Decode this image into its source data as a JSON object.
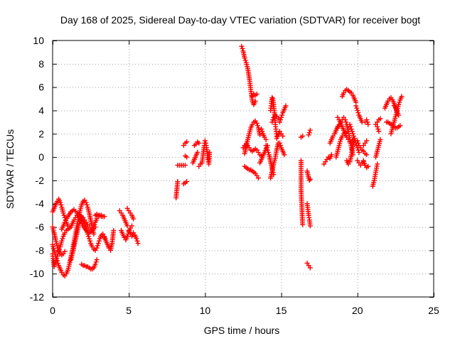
{
  "chart_data": {
    "type": "scatter",
    "title": "Day 168 of 2025, Sidereal Day-to-day VTEC variation (SDTVAR) for receiver bogt",
    "xlabel": "GPS time / hours",
    "ylabel": "SDTVAR / TECUs",
    "xlim": [
      0,
      25
    ],
    "ylim": [
      -12,
      10
    ],
    "xticks": [
      0,
      5,
      10,
      15,
      20,
      25
    ],
    "yticks": [
      -12,
      -10,
      -8,
      -6,
      -4,
      -2,
      0,
      2,
      4,
      6,
      8,
      10
    ],
    "grid": true,
    "marker": "plus",
    "color": "#ff0000",
    "segments": [
      {
        "x": [
          0.0,
          0.1,
          0.2,
          0.3,
          0.4,
          0.5,
          0.6,
          0.7,
          0.8,
          0.9,
          1.0,
          1.1,
          1.2,
          1.3,
          1.4,
          1.5,
          1.6,
          1.7,
          1.8,
          1.9,
          2.0,
          2.1,
          2.2,
          2.3,
          2.4,
          2.5,
          2.6,
          2.7,
          2.8,
          2.9,
          3.0,
          3.1,
          3.2
        ],
        "y": [
          -4.7,
          -4.4,
          -4.1,
          -3.8,
          -3.6,
          -3.9,
          -4.3,
          -4.8,
          -5.2,
          -5.6,
          -5.9,
          -6.1,
          -6.0,
          -5.7,
          -5.4,
          -5.2,
          -5.0,
          -4.9,
          -5.0,
          -5.1,
          -5.2,
          -5.4,
          -5.6,
          -5.8,
          -6.0,
          -6.2,
          -6.3,
          -6.0,
          -5.6,
          -5.3,
          -5.1,
          -5.0,
          -5.1
        ]
      },
      {
        "x": [
          0.0,
          0.1,
          0.2,
          0.3,
          0.4,
          0.5,
          0.6,
          0.7,
          0.8,
          0.9,
          1.0,
          1.1,
          1.2,
          1.3,
          1.4,
          1.5,
          1.6,
          1.7,
          1.8,
          1.9,
          2.0,
          2.1,
          2.2,
          2.3,
          2.4,
          2.5,
          2.6,
          2.7
        ],
        "y": [
          -7.5,
          -8.0,
          -8.5,
          -8.9,
          -9.3,
          -9.6,
          -9.9,
          -10.1,
          -10.2,
          -10.0,
          -9.7,
          -9.2,
          -8.6,
          -8.0,
          -7.3,
          -6.6,
          -5.9,
          -5.2,
          -4.6,
          -4.1,
          -3.8,
          -3.7,
          -3.9,
          -4.3,
          -4.8,
          -5.4,
          -6.0,
          -6.6
        ]
      },
      {
        "x": [
          0.0,
          0.1,
          0.2,
          0.3,
          0.4,
          0.5,
          0.6,
          0.7,
          0.8
        ],
        "y": [
          -6.0,
          -6.5,
          -7.1,
          -7.6,
          -8.0,
          -8.3,
          -8.4,
          -8.3,
          -8.1
        ]
      },
      {
        "x": [
          0.0,
          0.05,
          0.1,
          0.2,
          0.3,
          0.4,
          0.5,
          0.6,
          0.7,
          0.8,
          0.9,
          1.0
        ],
        "y": [
          -8.3,
          -8.9,
          -9.4,
          -9.0,
          -8.5,
          -8.1,
          -7.7,
          -7.2,
          -6.8,
          -6.5,
          -6.3,
          -6.2
        ]
      },
      {
        "x": [
          0.6,
          0.8,
          1.0,
          1.2,
          1.4,
          1.6,
          1.8,
          2.0,
          2.2,
          2.4,
          2.6,
          2.8
        ],
        "y": [
          -6.2,
          -5.6,
          -5.1,
          -4.7,
          -4.5,
          -4.8,
          -5.3,
          -5.9,
          -6.3,
          -6.5,
          -6.3,
          -6.0
        ]
      },
      {
        "x": [
          1.2,
          1.3,
          1.4,
          1.5,
          1.6,
          1.7,
          1.8,
          1.9,
          2.0,
          2.1,
          2.2,
          2.3,
          2.4,
          2.5,
          2.6,
          2.7,
          2.8,
          2.9,
          3.0,
          3.1,
          3.2,
          3.3,
          3.4,
          3.5
        ],
        "y": [
          -8.8,
          -8.3,
          -7.7,
          -7.1,
          -6.5,
          -5.9,
          -5.5,
          -5.3,
          -5.4,
          -5.7,
          -6.1,
          -6.6,
          -7.0,
          -7.4,
          -7.7,
          -7.9,
          -8.0,
          -7.8,
          -7.4,
          -7.0,
          -6.7,
          -6.6,
          -6.8,
          -7.2
        ]
      },
      {
        "x": [
          1.9,
          2.0,
          2.1,
          2.2,
          2.3,
          2.4,
          2.5,
          2.6,
          2.7,
          2.8,
          2.9
        ],
        "y": [
          -9.2,
          -9.3,
          -9.3,
          -9.4,
          -9.4,
          -9.5,
          -9.6,
          -9.6,
          -9.5,
          -9.2,
          -8.8
        ]
      },
      {
        "x": [
          2.8,
          2.9,
          3.0,
          3.1,
          3.2,
          3.3,
          3.4
        ],
        "y": [
          -5.0,
          -4.9,
          -5.0,
          -5.0,
          -5.0,
          -5.1,
          -5.1
        ]
      },
      {
        "x": [
          3.4,
          3.5,
          3.6,
          3.7,
          3.8,
          3.9,
          4.0
        ],
        "y": [
          -6.9,
          -7.2,
          -7.5,
          -7.8,
          -8.0,
          -7.4,
          -6.3
        ]
      },
      {
        "x": [
          4.4,
          4.5,
          4.6,
          4.7,
          4.8,
          4.9
        ],
        "y": [
          -4.6,
          -4.8,
          -5.0,
          -5.3,
          -5.6,
          -5.9
        ]
      },
      {
        "x": [
          4.5,
          4.6,
          4.7,
          4.8,
          4.9,
          5.0,
          5.1,
          5.2
        ],
        "y": [
          -6.3,
          -6.6,
          -6.9,
          -7.1,
          -6.8,
          -6.4,
          -6.1,
          -5.9
        ]
      },
      {
        "x": [
          4.9,
          5.0,
          5.1,
          5.2,
          5.3
        ],
        "y": [
          -4.4,
          -4.6,
          -4.8,
          -5.0,
          -5.3
        ]
      },
      {
        "x": [
          5.0,
          5.1,
          5.2,
          5.3,
          5.4,
          5.5,
          5.6
        ],
        "y": [
          -6.3,
          -6.6,
          -6.8,
          -6.5,
          -6.7,
          -7.0,
          -7.4
        ]
      },
      {
        "x": [
          8.1,
          8.2
        ],
        "y": [
          -3.5,
          -2.1
        ]
      },
      {
        "x": [
          8.2,
          8.7
        ],
        "y": [
          -0.7,
          -0.7
        ]
      },
      {
        "x": [
          8.6,
          8.7,
          8.8
        ],
        "y": [
          -2.3,
          -2.2,
          -2.1
        ]
      },
      {
        "x": [
          8.6,
          8.7,
          8.8
        ],
        "y": [
          1.0,
          1.2,
          1.3
        ]
      },
      {
        "x": [
          8.7,
          8.8
        ],
        "y": [
          0.1,
          0.0
        ]
      },
      {
        "x": [
          9.2,
          9.3,
          9.4,
          9.5
        ],
        "y": [
          -0.5,
          -0.2,
          0.1,
          0.4
        ]
      },
      {
        "x": [
          9.3,
          9.4,
          9.5,
          9.6
        ],
        "y": [
          1.0,
          1.1,
          1.3,
          1.2
        ]
      },
      {
        "x": [
          9.6,
          9.7
        ],
        "y": [
          -0.8,
          -0.6
        ]
      },
      {
        "x": [
          9.8,
          9.85,
          9.9,
          9.95,
          10.0,
          10.05,
          10.1,
          10.15,
          10.2,
          10.25,
          10.3
        ],
        "y": [
          -0.5,
          0.0,
          0.5,
          1.0,
          1.4,
          1.2,
          0.8,
          0.3,
          -0.2,
          -0.6,
          0.4
        ]
      },
      {
        "x": [
          12.4,
          12.5,
          12.6,
          12.7,
          12.8,
          12.9,
          13.0,
          13.1,
          13.2,
          13.3
        ],
        "y": [
          9.5,
          9.1,
          8.5,
          8.1,
          7.6,
          6.8,
          5.8,
          4.8,
          4.5,
          4.8
        ]
      },
      {
        "x": [
          13.1,
          13.2,
          13.3,
          13.4
        ],
        "y": [
          5.2,
          5.4,
          5.3,
          5.4
        ]
      },
      {
        "x": [
          12.6,
          12.7,
          12.8,
          12.9,
          13.0,
          13.1,
          13.2,
          13.3,
          13.4,
          13.5,
          13.6
        ],
        "y": [
          0.3,
          0.9,
          1.5,
          2.0,
          2.5,
          2.8,
          3.0,
          3.1,
          2.9,
          2.5,
          1.9
        ]
      },
      {
        "x": [
          12.5,
          12.6,
          12.7,
          12.8,
          12.9,
          13.0,
          13.1,
          13.2,
          13.3,
          13.4,
          13.5,
          13.6,
          13.7
        ],
        "y": [
          0.8,
          1.0,
          1.1,
          1.0,
          0.8,
          0.6,
          0.5,
          0.6,
          0.7,
          0.6,
          0.4,
          0.2,
          0.1
        ]
      },
      {
        "x": [
          12.6,
          12.7,
          12.8,
          12.9,
          13.0,
          13.1,
          13.2,
          13.3,
          13.4,
          13.5
        ],
        "y": [
          -0.8,
          -0.9,
          -1.0,
          -1.1,
          -1.1,
          -1.2,
          -1.3,
          -1.4,
          -1.6,
          -1.8
        ]
      },
      {
        "x": [
          13.6,
          13.7,
          13.8,
          13.9,
          14.0,
          14.1
        ],
        "y": [
          -0.5,
          -0.2,
          0.1,
          0.4,
          0.7,
          1.0
        ]
      },
      {
        "x": [
          13.7,
          13.8,
          13.9,
          14.0
        ],
        "y": [
          2.4,
          2.0,
          1.7,
          1.5
        ]
      },
      {
        "x": [
          14.0,
          14.1,
          14.2,
          14.3,
          14.4,
          14.5
        ],
        "y": [
          1.0,
          0.6,
          0.2,
          -0.4,
          -1.0,
          -1.5
        ]
      },
      {
        "x": [
          14.3,
          14.35,
          14.4,
          14.45,
          14.5,
          14.55,
          14.6,
          14.65,
          14.7
        ],
        "y": [
          4.0,
          4.6,
          5.1,
          5.0,
          4.5,
          3.8,
          3.0,
          2.4,
          1.8
        ]
      },
      {
        "x": [
          14.4,
          14.5,
          14.6,
          14.7,
          14.8
        ],
        "y": [
          3.0,
          3.4,
          3.6,
          3.5,
          3.3
        ]
      },
      {
        "x": [
          14.3,
          14.4,
          14.5,
          14.6,
          14.7,
          14.8
        ],
        "y": [
          -1.8,
          -1.2,
          -0.6,
          -0.1,
          0.6,
          1.2
        ]
      },
      {
        "x": [
          14.7,
          14.8,
          14.9,
          15.0,
          15.1
        ],
        "y": [
          1.6,
          1.9,
          2.2,
          2.0,
          1.8
        ]
      },
      {
        "x": [
          14.9,
          15.0,
          15.1,
          15.2,
          15.3
        ],
        "y": [
          3.0,
          3.4,
          3.8,
          4.1,
          4.4
        ]
      },
      {
        "x": [
          14.9,
          15.0,
          15.1,
          15.2
        ],
        "y": [
          1.2,
          0.8,
          0.5,
          0.2
        ]
      },
      {
        "x": [
          16.3,
          16.3,
          16.3,
          16.4
        ],
        "y": [
          -0.3,
          -1.3,
          -2.8,
          -5.8
        ]
      },
      {
        "x": [
          16.3,
          16.4
        ],
        "y": [
          1.7,
          1.8
        ]
      },
      {
        "x": [
          16.7,
          16.75,
          16.8,
          16.85,
          16.9
        ],
        "y": [
          -4.0,
          -4.5,
          -5.0,
          -5.4,
          -5.9
        ]
      },
      {
        "x": [
          16.7,
          16.75,
          16.8,
          16.85,
          16.9
        ],
        "y": [
          -1.2,
          -1.5,
          -1.8,
          -2.0,
          -1.9
        ]
      },
      {
        "x": [
          16.8,
          16.9
        ],
        "y": [
          1.9,
          2.3
        ]
      },
      {
        "x": [
          16.7,
          16.8,
          16.9
        ],
        "y": [
          -9.1,
          -9.3,
          -9.5
        ]
      },
      {
        "x": [
          17.8,
          17.9,
          18.0,
          18.1,
          18.2,
          18.3
        ],
        "y": [
          -0.6,
          -0.4,
          -0.2,
          0.0,
          -0.1,
          0.2
        ]
      },
      {
        "x": [
          18.2,
          18.3,
          18.4,
          18.5,
          18.6,
          18.7
        ],
        "y": [
          1.2,
          1.5,
          1.8,
          2.0,
          2.3,
          2.6
        ]
      },
      {
        "x": [
          18.6,
          18.7,
          18.8,
          18.9,
          19.0,
          19.1,
          19.2
        ],
        "y": [
          0.0,
          0.5,
          1.0,
          1.5,
          1.8,
          2.0,
          2.1
        ]
      },
      {
        "x": [
          18.7,
          18.8,
          18.9,
          19.0,
          19.1,
          19.2,
          19.3,
          19.4,
          19.5,
          19.6,
          19.7
        ],
        "y": [
          3.4,
          3.2,
          2.9,
          2.6,
          2.3,
          2.0,
          1.7,
          1.5,
          1.3,
          1.3,
          1.5
        ]
      },
      {
        "x": [
          18.7,
          18.8,
          18.9,
          19.0,
          19.1,
          19.2,
          19.3,
          19.4,
          19.5,
          19.6,
          19.7
        ],
        "y": [
          2.5,
          2.8,
          3.0,
          3.2,
          3.4,
          3.2,
          2.8,
          2.2,
          1.5,
          0.8,
          0.2
        ]
      },
      {
        "x": [
          19.0,
          19.1,
          19.2,
          19.3,
          19.4,
          19.5,
          19.6,
          19.7,
          19.8,
          19.9
        ],
        "y": [
          5.2,
          5.5,
          5.7,
          5.8,
          5.7,
          5.6,
          5.5,
          5.3,
          5.0,
          4.7
        ]
      },
      {
        "x": [
          19.3,
          19.4,
          19.5,
          19.6,
          19.7,
          19.8
        ],
        "y": [
          -0.3,
          -0.6,
          -0.4,
          0.2,
          0.9,
          1.6
        ]
      },
      {
        "x": [
          19.5,
          19.6,
          19.7,
          19.8,
          19.9,
          20.0,
          20.1
        ],
        "y": [
          2.8,
          2.4,
          2.0,
          1.6,
          1.2,
          0.8,
          0.4
        ]
      },
      {
        "x": [
          19.9,
          20.0,
          20.1,
          20.2,
          20.3
        ],
        "y": [
          4.4,
          4.0,
          3.6,
          3.3,
          3.0
        ]
      },
      {
        "x": [
          20.0,
          20.1,
          20.2,
          20.3,
          20.4
        ],
        "y": [
          -0.3,
          -0.5,
          -0.7,
          -0.5,
          -0.3
        ]
      },
      {
        "x": [
          20.0,
          20.1,
          20.2,
          20.3,
          20.4,
          20.5,
          20.6
        ],
        "y": [
          1.4,
          1.0,
          0.8,
          0.6,
          0.5,
          0.3,
          0.2
        ]
      },
      {
        "x": [
          20.4,
          20.5,
          20.6,
          20.7
        ],
        "y": [
          -0.4,
          -0.7,
          -0.9,
          -0.8
        ]
      },
      {
        "x": [
          20.5,
          20.6,
          20.7
        ],
        "y": [
          3.0,
          3.2,
          2.8
        ]
      },
      {
        "x": [
          20.4,
          20.5,
          20.6
        ],
        "y": [
          1.0,
          1.2,
          1.4
        ]
      },
      {
        "x": [
          21.0,
          21.1,
          21.2,
          21.3
        ],
        "y": [
          -2.5,
          -2.0,
          -1.3,
          -0.6
        ]
      },
      {
        "x": [
          21.2,
          21.3,
          21.4,
          21.5
        ],
        "y": [
          0.0,
          0.5,
          1.0,
          1.5
        ]
      },
      {
        "x": [
          21.2,
          21.3,
          21.4,
          21.5
        ],
        "y": [
          2.8,
          3.0,
          3.2,
          3.3
        ]
      },
      {
        "x": [
          21.3,
          21.4
        ],
        "y": [
          2.6,
          2.2
        ]
      },
      {
        "x": [
          21.8,
          21.9,
          22.0,
          22.1,
          22.2,
          22.3,
          22.4,
          22.5,
          22.6
        ],
        "y": [
          4.2,
          4.5,
          4.8,
          5.0,
          5.1,
          4.9,
          4.6,
          4.3,
          4.0
        ]
      },
      {
        "x": [
          21.9,
          22.0,
          22.1,
          22.2,
          22.3,
          22.4,
          22.5,
          22.6,
          22.7,
          22.8
        ],
        "y": [
          3.0,
          3.0,
          2.9,
          2.8,
          2.7,
          2.6,
          2.5,
          2.5,
          2.6,
          2.7
        ]
      },
      {
        "x": [
          22.2,
          22.3,
          22.4,
          22.5,
          22.6,
          22.7,
          22.8,
          22.9
        ],
        "y": [
          2.0,
          2.5,
          3.0,
          3.5,
          4.0,
          4.5,
          4.9,
          5.2
        ]
      },
      {
        "x": [
          22.4,
          22.5,
          22.6,
          22.7
        ],
        "y": [
          4.4,
          4.2,
          3.9,
          3.6
        ]
      }
    ]
  }
}
